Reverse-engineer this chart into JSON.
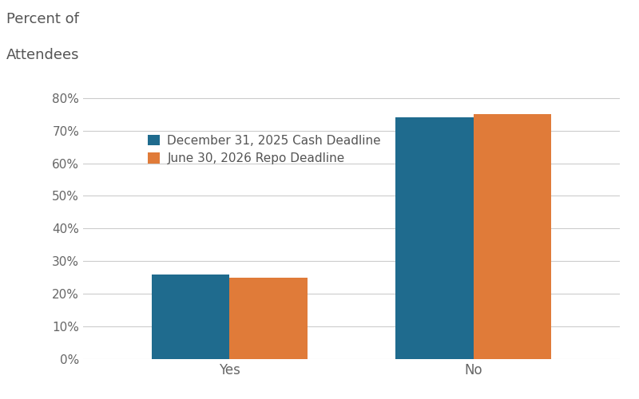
{
  "categories": [
    "Yes",
    "No"
  ],
  "series": [
    {
      "label": "December 31, 2025 Cash Deadline",
      "values": [
        0.26,
        0.74
      ],
      "color": "#1f6b8e"
    },
    {
      "label": "June 30, 2026 Repo Deadline",
      "values": [
        0.25,
        0.75
      ],
      "color": "#e07b39"
    }
  ],
  "ylabel_line1": "Percent of",
  "ylabel_line2": "Attendees",
  "ylim": [
    0,
    0.88
  ],
  "yticks": [
    0.0,
    0.1,
    0.2,
    0.3,
    0.4,
    0.5,
    0.6,
    0.7,
    0.8
  ],
  "background_color": "#ffffff",
  "grid_color": "#cccccc",
  "bar_width": 0.32,
  "figsize": [
    8.0,
    5.0
  ],
  "dpi": 100,
  "ylabel_fontsize": 13,
  "tick_fontsize": 11,
  "legend_fontsize": 11
}
